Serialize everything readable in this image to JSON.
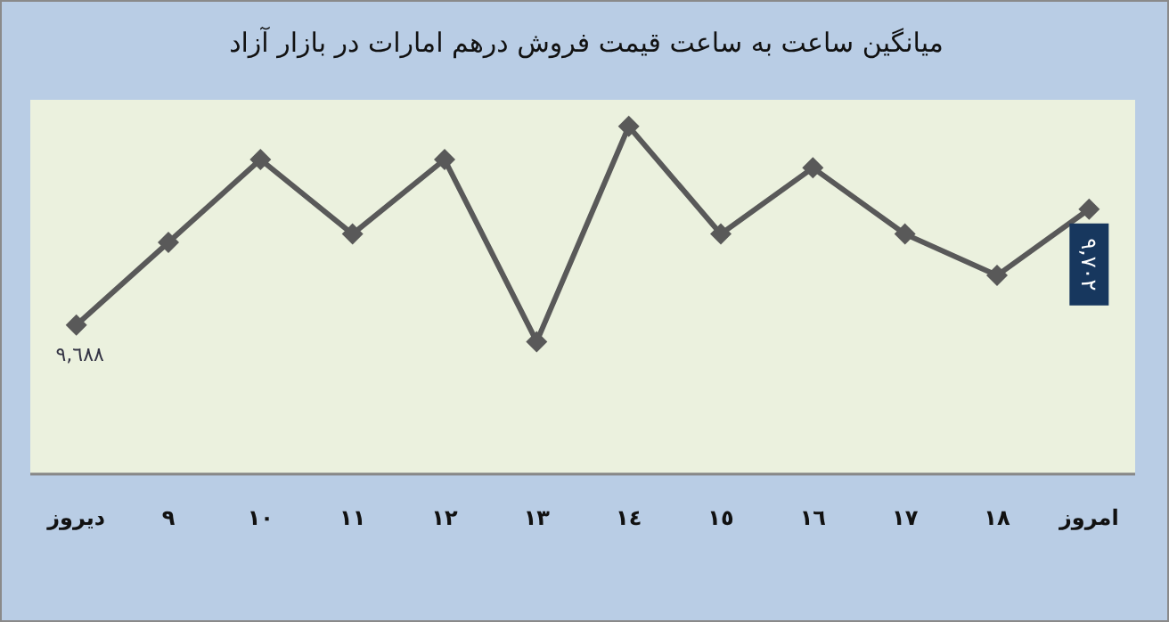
{
  "chart_data": {
    "type": "line",
    "title": "میانگین ساعت به ساعت قیمت فروش درهم امارات در بازار آزاد",
    "ylim": [
      9670,
      9715
    ],
    "tick_labels": "x",
    "categories": [
      "دیروز",
      "٩",
      "١٠",
      "١١",
      "١٢",
      "١٣",
      "١٤",
      "١٥",
      "١٦",
      "١٧",
      "١٨",
      "امروز"
    ],
    "series": [
      {
        "color": "#595959",
        "values": [
          9688,
          9698,
          9708,
          9699,
          9708,
          9686,
          9712,
          9699,
          9707,
          9699,
          9694,
          9702
        ],
        "value_labels": [
          "٩,٦٨٨",
          null,
          null,
          null,
          null,
          null,
          null,
          null,
          null,
          null,
          null,
          "٩,٧٠٢"
        ]
      }
    ],
    "marker": "diamond",
    "line_style": "solid",
    "grid": false,
    "legend": false
  }
}
